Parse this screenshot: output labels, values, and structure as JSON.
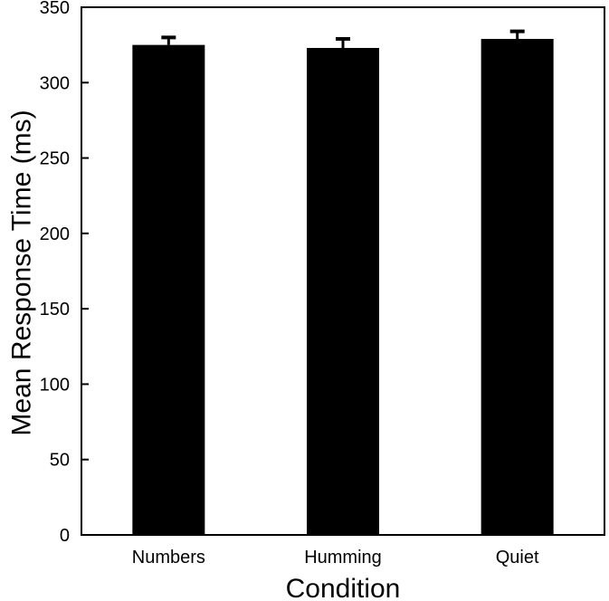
{
  "chart_data": {
    "type": "bar",
    "title": "",
    "xlabel": "Condition",
    "ylabel": "Mean Response Time (ms)",
    "categories": [
      "Numbers",
      "Humming",
      "Quiet"
    ],
    "values": [
      325,
      323,
      329
    ],
    "error_upper": [
      5,
      6,
      5
    ],
    "ylim": [
      0,
      350
    ],
    "yticks": [
      0,
      50,
      100,
      150,
      200,
      250,
      300,
      350
    ],
    "ytick_labels": [
      "0",
      "50",
      "100",
      "150",
      "200",
      "250",
      "300",
      "350"
    ],
    "grid": false,
    "legend": "none",
    "bar_color": "#000000"
  }
}
